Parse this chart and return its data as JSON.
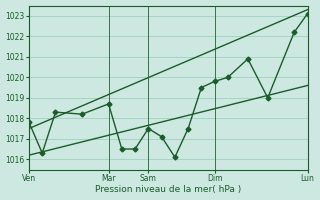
{
  "title": "",
  "xlabel": "Pression niveau de la mer( hPa )",
  "ylabel": "",
  "bg_color": "#cce8e0",
  "grid_color": "#99ccbb",
  "line_color": "#1a5c2a",
  "ylim": [
    1015.5,
    1023.5
  ],
  "ytick_values": [
    1016,
    1017,
    1018,
    1019,
    1020,
    1021,
    1022,
    1023
  ],
  "xlim_min": 0,
  "xlim_max": 42,
  "xtick_positions": [
    0,
    12,
    18,
    28,
    42
  ],
  "xtick_labels": [
    "Ven",
    "Mar",
    "Sam",
    "Dim",
    "Lun"
  ],
  "vline_positions": [
    0,
    12,
    18,
    28,
    42
  ],
  "series1_x": [
    0,
    2,
    4,
    8,
    12,
    14,
    16,
    18,
    20,
    22,
    24,
    26,
    28,
    30,
    33,
    36,
    40,
    42
  ],
  "series1_y": [
    1017.8,
    1016.3,
    1018.3,
    1018.2,
    1018.7,
    1016.5,
    1016.5,
    1017.5,
    1017.1,
    1016.1,
    1017.5,
    1019.5,
    1019.8,
    1020.0,
    1020.9,
    1019.0,
    1022.2,
    1023.1
  ],
  "series2_x": [
    0,
    42
  ],
  "series2_y": [
    1017.5,
    1023.3
  ],
  "series3_x": [
    0,
    42
  ],
  "series3_y": [
    1016.2,
    1019.6
  ],
  "marker_size": 2.5,
  "linewidth": 1.0
}
